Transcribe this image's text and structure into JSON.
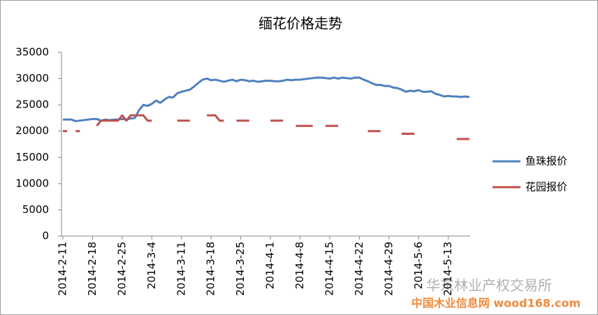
{
  "chart_data": {
    "type": "line",
    "title": "缅花价格走势",
    "categories": [
      "2014-2-11",
      null,
      null,
      null,
      null,
      null,
      null,
      "2014-2-18",
      null,
      null,
      null,
      null,
      null,
      null,
      "2014-2-25",
      null,
      null,
      null,
      null,
      null,
      null,
      "2014-3-4",
      null,
      null,
      null,
      null,
      null,
      null,
      "2014-3-11",
      null,
      null,
      null,
      null,
      null,
      null,
      "2014-3-18",
      null,
      null,
      null,
      null,
      null,
      null,
      "2014-3-25",
      null,
      null,
      null,
      null,
      null,
      null,
      "2014-4-1",
      null,
      null,
      null,
      null,
      null,
      null,
      "2014-4-8",
      null,
      null,
      null,
      null,
      null,
      null,
      "2014-4-15",
      null,
      null,
      null,
      null,
      null,
      null,
      "2014-4-22",
      null,
      null,
      null,
      null,
      null,
      null,
      "2014-4-29",
      null,
      null,
      null,
      null,
      null,
      null,
      "2014-5-6",
      null,
      null,
      null,
      null,
      null,
      null,
      "2014-5-13",
      null,
      null,
      null,
      null,
      null
    ],
    "series": [
      {
        "name": "鱼珠报价",
        "color": "#4f81bd",
        "values": [
          22200,
          22200,
          22200,
          21900,
          22000,
          22100,
          22200,
          22300,
          22300,
          22000,
          22200,
          22100,
          22200,
          22200,
          22300,
          22200,
          22400,
          22500,
          24000,
          25000,
          24800,
          25200,
          25800,
          25400,
          26000,
          26500,
          26400,
          27200,
          27500,
          27700,
          27900,
          28500,
          29200,
          29800,
          30000,
          29700,
          29800,
          29600,
          29400,
          29600,
          29800,
          29500,
          29800,
          29700,
          29500,
          29600,
          29400,
          29500,
          29600,
          29600,
          29500,
          29500,
          29600,
          29800,
          29700,
          29800,
          29800,
          29900,
          30000,
          30100,
          30200,
          30200,
          30100,
          30000,
          30200,
          30000,
          30200,
          30100,
          30000,
          30200,
          30200,
          29800,
          29500,
          29100,
          28800,
          28800,
          28600,
          28600,
          28300,
          28200,
          27900,
          27500,
          27700,
          27600,
          27800,
          27500,
          27500,
          27600,
          27100,
          26900,
          26600,
          26700,
          26600,
          26600,
          26500,
          26600,
          26500
        ]
      },
      {
        "name": "花园报价",
        "color": "#c0504d",
        "values": [
          20000,
          20000,
          null,
          20000,
          20000,
          null,
          null,
          null,
          21000,
          22000,
          22000,
          22000,
          22000,
          22000,
          23000,
          22000,
          23000,
          23000,
          23000,
          23000,
          22000,
          22000,
          null,
          null,
          null,
          null,
          null,
          22000,
          22000,
          22000,
          22000,
          null,
          null,
          null,
          23000,
          23000,
          23000,
          22000,
          22000,
          null,
          null,
          22000,
          22000,
          22000,
          22000,
          null,
          null,
          null,
          null,
          22000,
          22000,
          22000,
          22000,
          null,
          null,
          21000,
          21000,
          21000,
          21000,
          21000,
          null,
          null,
          21000,
          21000,
          21000,
          21000,
          null,
          null,
          null,
          null,
          null,
          null,
          20000,
          20000,
          20000,
          20000,
          null,
          null,
          null,
          null,
          19500,
          19500,
          19500,
          19500,
          null,
          null,
          null,
          null,
          null,
          null,
          null,
          null,
          null,
          18500,
          18500,
          18500,
          18500
        ]
      }
    ],
    "ylim": [
      0,
      35000
    ],
    "yticks": [
      0,
      5000,
      10000,
      15000,
      20000,
      25000,
      30000,
      35000
    ],
    "grid": false,
    "legend": "right",
    "annotations": [
      "华东林业产权交易所",
      "中国木业信息网 wood168.com"
    ]
  }
}
